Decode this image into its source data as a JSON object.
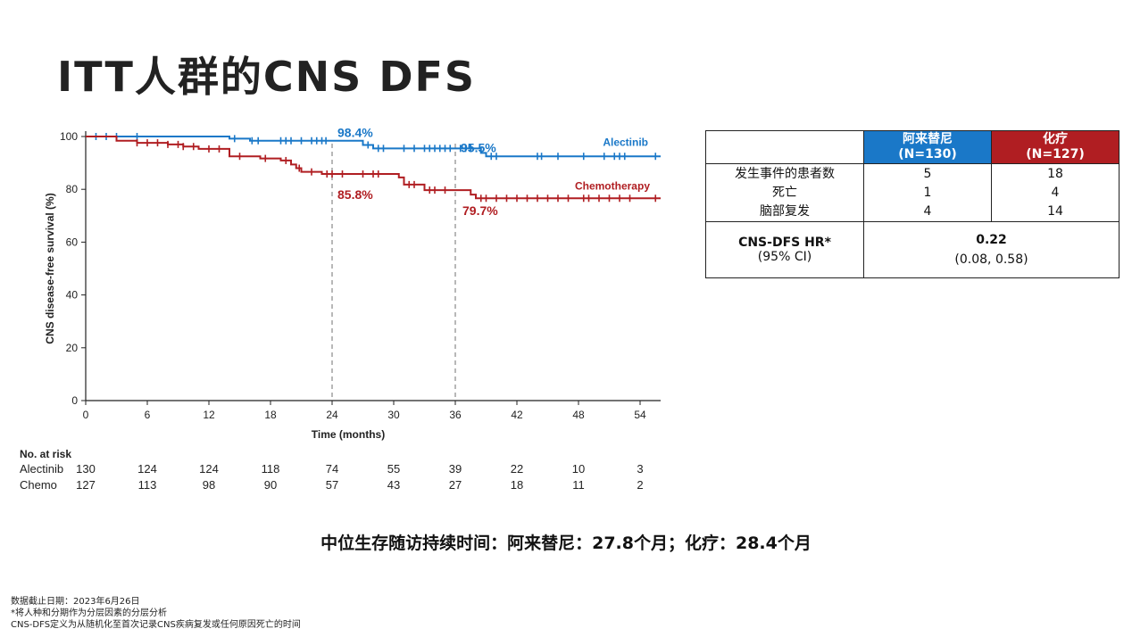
{
  "page": {
    "title": "ITT人群的CNS DFS",
    "summary": "中位生存随访持续时间：阿来替尼：27.8个月；化疗：28.4个月",
    "notes": [
      "数据截止日期：2023年6月26日",
      "*将人种和分期作为分层因素的分层分析",
      "CNS-DFS定义为从随机化至首次记录CNS疾病复发或任何原因死亡的时间"
    ]
  },
  "colors": {
    "alectinib": "#1a78c8",
    "chemo": "#b01e22",
    "reference_line": "#888888"
  },
  "chart_data": {
    "type": "line",
    "ylabel": "CNS disease-free survival (%)",
    "xlabel": "Time (months)",
    "xlim": [
      0,
      56
    ],
    "ylim": [
      0,
      100
    ],
    "xticks": [
      0,
      6,
      12,
      18,
      24,
      30,
      36,
      42,
      48,
      54
    ],
    "yticks": [
      0,
      20,
      40,
      60,
      80,
      100
    ],
    "reference_lines_x": [
      24,
      36
    ],
    "series": [
      {
        "name": "Alectinib",
        "color": "#1a78c8",
        "steps": [
          [
            0,
            100
          ],
          [
            14,
            99.2
          ],
          [
            16,
            98.4
          ],
          [
            27,
            96.8
          ],
          [
            28,
            95.5
          ],
          [
            38.5,
            93.8
          ],
          [
            39,
            92.5
          ],
          [
            56,
            92.5
          ]
        ],
        "censor_x": [
          1,
          2,
          3,
          5,
          14.5,
          16.2,
          16.8,
          19,
          19.5,
          20,
          21,
          22,
          22.5,
          23,
          23.4,
          27.5,
          28.5,
          29,
          31,
          32,
          33,
          33.5,
          34,
          34.5,
          35,
          35.5,
          36.5,
          37,
          37.5,
          39.5,
          40,
          44,
          44.4,
          46,
          48.5,
          50.5,
          51.5,
          52,
          52.5,
          55.5
        ]
      },
      {
        "name": "Chemotherapy",
        "color": "#b01e22",
        "steps": [
          [
            0,
            100
          ],
          [
            3,
            98.4
          ],
          [
            5,
            97.6
          ],
          [
            8,
            97
          ],
          [
            9.5,
            96.2
          ],
          [
            11,
            95.3
          ],
          [
            14,
            92.5
          ],
          [
            17,
            91.7
          ],
          [
            19,
            90.9
          ],
          [
            20,
            89.4
          ],
          [
            20.5,
            88
          ],
          [
            21,
            86.6
          ],
          [
            23,
            85.8
          ],
          [
            30.5,
            84.5
          ],
          [
            31,
            81.8
          ],
          [
            33,
            79.7
          ],
          [
            37.5,
            78
          ],
          [
            38,
            76.6
          ],
          [
            56,
            76.6
          ]
        ],
        "censor_x": [
          5,
          6,
          7,
          8,
          9,
          9.5,
          10.5,
          12,
          13,
          15,
          17.5,
          19.5,
          20.8,
          22,
          23.5,
          24,
          25,
          27,
          28,
          28.5,
          31.5,
          32,
          33.5,
          34,
          35,
          38.5,
          39,
          40,
          41,
          42,
          43,
          44,
          45,
          46,
          47,
          48.5,
          49,
          50,
          51,
          52,
          53,
          55.5
        ]
      }
    ],
    "annotations": [
      {
        "text": "98.4%",
        "x": 24,
        "y": 98.4,
        "series": "Alectinib"
      },
      {
        "text": "95.5%",
        "x": 36,
        "y": 95.5,
        "series": "Alectinib"
      },
      {
        "text": "85.8%",
        "x": 24,
        "y": 85.8,
        "series": "Chemotherapy"
      },
      {
        "text": "79.7%",
        "x": 36,
        "y": 79.7,
        "series": "Chemotherapy"
      }
    ],
    "risk_table": {
      "header": "No. at risk",
      "times": [
        0,
        6,
        12,
        18,
        24,
        30,
        36,
        42,
        48,
        54
      ],
      "rows": [
        {
          "label": "Alectinib",
          "values": [
            130,
            124,
            124,
            118,
            74,
            55,
            39,
            22,
            10,
            3
          ]
        },
        {
          "label": "Chemo",
          "values": [
            127,
            113,
            98,
            90,
            57,
            43,
            27,
            18,
            11,
            2
          ]
        }
      ]
    }
  },
  "hr_table": {
    "col_a_name": "阿来替尼",
    "col_a_n": "(N=130)",
    "col_c_name": "化疗",
    "col_c_n": "(N=127)",
    "rows": [
      {
        "label": "发生事件的患者数",
        "a": "5",
        "c": "18"
      },
      {
        "label": "死亡",
        "a": "1",
        "c": "4"
      },
      {
        "label": "脑部复发",
        "a": "4",
        "c": "14"
      }
    ],
    "hr_label": "CNS-DFS HR*",
    "ci_label": "(95% CI)",
    "hr_value": "0.22",
    "ci_value": "(0.08, 0.58)"
  }
}
